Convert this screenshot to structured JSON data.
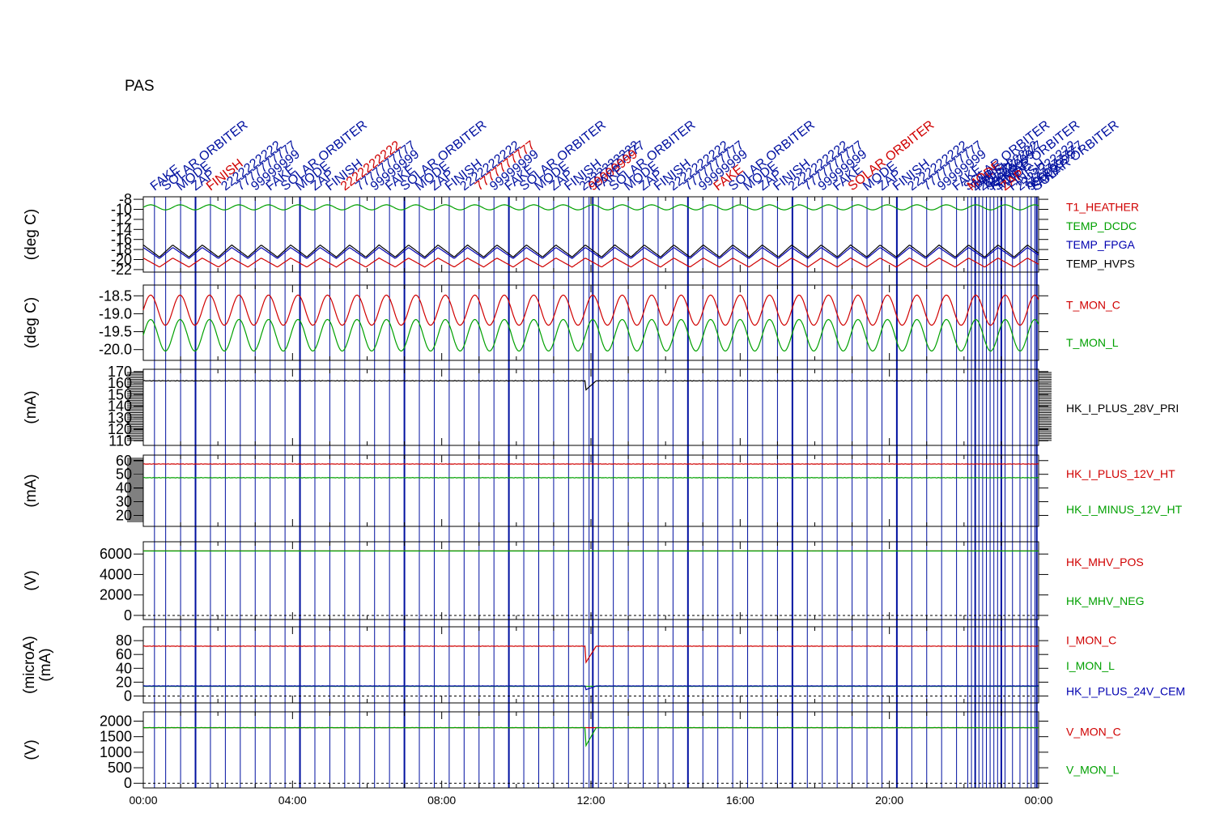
{
  "title": "PAS",
  "colors": {
    "red": "#d00000",
    "green": "#00a000",
    "blue": "#0000b0",
    "black": "#000000",
    "event_line": "#0010a0",
    "dashed": "#000000"
  },
  "chart_data": {
    "type": "line",
    "x_range_hours": [
      0,
      24
    ],
    "xtick_labels": [
      "00:00",
      "04:00",
      "08:00",
      "12:00",
      "16:00",
      "20:00",
      "00:00"
    ],
    "event_times_hours": [
      0.3,
      0.6,
      1.0,
      1.4,
      1.8,
      2.2,
      2.6,
      3.0,
      3.4,
      3.8,
      4.2,
      4.6,
      5.0,
      5.4,
      5.8,
      6.2,
      6.6,
      7.0,
      7.4,
      7.8,
      8.2,
      8.6,
      9.0,
      9.4,
      9.8,
      10.2,
      10.6,
      11.0,
      11.4,
      11.8,
      11.95,
      12.05,
      12.2,
      12.6,
      13.0,
      13.4,
      13.8,
      14.2,
      14.6,
      15.0,
      15.4,
      15.8,
      16.2,
      16.6,
      17.0,
      17.4,
      17.8,
      18.2,
      18.6,
      19.0,
      19.4,
      19.8,
      20.2,
      20.6,
      21.0,
      21.4,
      21.8,
      22.1,
      22.2,
      22.3,
      22.4,
      22.5,
      22.6,
      22.7,
      22.8,
      22.9,
      23.0,
      23.1,
      23.3,
      23.5,
      23.7,
      23.8,
      23.9,
      23.95
    ],
    "event_labels_sample": [
      "FAKE",
      "SOLAR ORBITER",
      "MODE",
      "ZAP",
      "FINISH",
      "2222222222",
      "7777777777",
      "99999999"
    ],
    "panels": [
      {
        "ylabel": "(deg C)",
        "ylim": [
          -22.5,
          -7.5
        ],
        "yticks": [
          "-8",
          "-10",
          "-12",
          "-14",
          "-16",
          "-18",
          "-20",
          "-22"
        ],
        "ytick_values": [
          -8,
          -10,
          -12,
          -14,
          -16,
          -18,
          -20,
          -22
        ],
        "series": [
          {
            "name": "T1_HEATHER",
            "color": "red",
            "base": -20.6,
            "amp": 0.9,
            "period_h": 0.79,
            "shape": "saw"
          },
          {
            "name": "TEMP_DCDC",
            "color": "green",
            "base": -9.6,
            "amp": 0.5,
            "period_h": 0.79,
            "shape": "sine"
          },
          {
            "name": "TEMP_FPGA",
            "color": "blue",
            "base": -18.7,
            "amp": 1.1,
            "period_h": 0.79,
            "shape": "saw"
          },
          {
            "name": "TEMP_HVPS",
            "color": "black",
            "base": -18.3,
            "amp": 1.2,
            "period_h": 0.79,
            "shape": "saw"
          }
        ]
      },
      {
        "ylabel": "(deg C)",
        "ylim": [
          -20.3,
          -18.2
        ],
        "yticks": [
          "-18.5",
          "-19.0",
          "-19.5",
          "-20.0"
        ],
        "ytick_values": [
          -18.5,
          -19.0,
          -19.5,
          -20.0
        ],
        "series": [
          {
            "name": "T_MON_C",
            "color": "red",
            "base": -18.9,
            "amp": 0.42,
            "period_h": 0.79,
            "shape": "sine"
          },
          {
            "name": "T_MON_L",
            "color": "green",
            "base": -19.6,
            "amp": 0.44,
            "period_h": 0.79,
            "shape": "sine"
          }
        ]
      },
      {
        "ylabel": "(mA)",
        "ylim": [
          106,
          172
        ],
        "yticks": [
          "170",
          "160",
          "150",
          "140",
          "130",
          "120",
          "110"
        ],
        "ytick_values": [
          170,
          160,
          150,
          140,
          130,
          120,
          110
        ],
        "series": [
          {
            "name": "HK_I_PLUS_28V_PRI",
            "color": "black",
            "base": 162,
            "amp": 0.3,
            "period_h": 0.2,
            "shape": "noise",
            "dip_at_h": 12.0,
            "dip_to": 154
          }
        ]
      },
      {
        "ylabel": "(mA)",
        "ylim": [
          12,
          64
        ],
        "yticks": [
          "60",
          "50",
          "40",
          "30",
          "20"
        ],
        "ytick_values": [
          60,
          50,
          40,
          30,
          20
        ],
        "series": [
          {
            "name": "HK_I_PLUS_12V_HT",
            "color": "red",
            "base": 57.5,
            "amp": 0.2,
            "period_h": 0.2,
            "shape": "noise"
          },
          {
            "name": "HK_I_MINUS_12V_HT",
            "color": "green",
            "base": 47.5,
            "amp": 0.2,
            "period_h": 0.2,
            "shape": "noise"
          }
        ]
      },
      {
        "ylabel": "(V)",
        "ylim": [
          -400,
          7200
        ],
        "yticks": [
          "6000",
          "4000",
          "2000",
          "0"
        ],
        "ytick_values": [
          6000,
          4000,
          2000,
          0
        ],
        "dashed_zero": true,
        "series": [
          {
            "name": "HK_MHV_POS",
            "color": "red",
            "base": 6300,
            "amp": 5,
            "period_h": 0.2,
            "shape": "noise"
          },
          {
            "name": "HK_MHV_NEG",
            "color": "green",
            "base": 6300,
            "amp": 5,
            "period_h": 0.2,
            "shape": "noise"
          }
        ]
      },
      {
        "ylabel": "(microA)",
        "ylabel2": "(mA)",
        "ylim": [
          -10,
          100
        ],
        "yticks": [
          "80",
          "60",
          "40",
          "20",
          "0"
        ],
        "ytick_values": [
          80,
          60,
          40,
          20,
          0
        ],
        "dashed_zero": true,
        "series": [
          {
            "name": "I_MON_C",
            "color": "red",
            "base": 72,
            "amp": 0.4,
            "period_h": 0.2,
            "shape": "noise",
            "dip_at_h": 12.0,
            "dip_to": 48
          },
          {
            "name": "I_MON_L",
            "color": "green",
            "base": 14,
            "amp": 0.2,
            "period_h": 0.2,
            "shape": "noise"
          },
          {
            "name": "HK_I_PLUS_24V_CEM",
            "color": "blue",
            "base": 14.5,
            "amp": 0.2,
            "period_h": 0.2,
            "shape": "noise",
            "dip_at_h": 12.0,
            "dip_to": 9
          }
        ]
      },
      {
        "ylabel": "(V)",
        "ylim": [
          -150,
          2300
        ],
        "yticks": [
          "2000",
          "1500",
          "1000",
          "500",
          "0"
        ],
        "ytick_values": [
          2000,
          1500,
          1000,
          500,
          0
        ],
        "dashed_zero": true,
        "series": [
          {
            "name": "V_MON_C",
            "color": "red",
            "base": 1790,
            "amp": 3,
            "period_h": 0.2,
            "shape": "noise"
          },
          {
            "name": "V_MON_L",
            "color": "green",
            "base": 1790,
            "amp": 3,
            "period_h": 0.2,
            "shape": "noise",
            "dip_at_h": 12.0,
            "dip_to": 1200
          }
        ]
      }
    ]
  }
}
